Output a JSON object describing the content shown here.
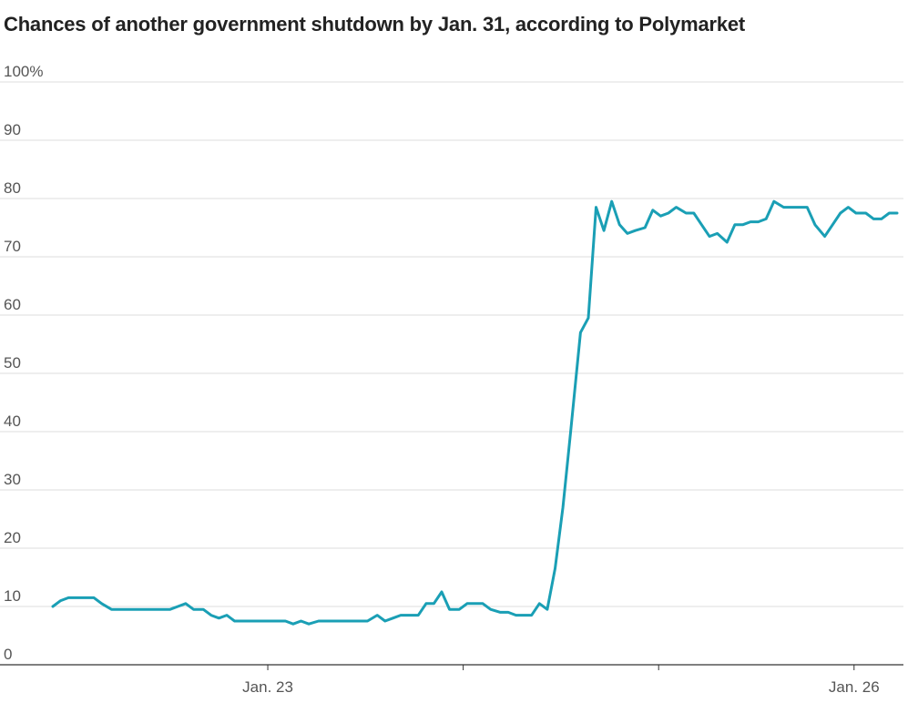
{
  "chart_data": {
    "type": "line",
    "title": "Chances of another government shutdown by Jan. 31, according to Polymarket",
    "xlabel": "",
    "ylabel": "",
    "ylim": [
      0,
      100
    ],
    "y_ticks": [
      {
        "value": 0,
        "label": "0"
      },
      {
        "value": 10,
        "label": "10"
      },
      {
        "value": 20,
        "label": "20"
      },
      {
        "value": 30,
        "label": "30"
      },
      {
        "value": 40,
        "label": "40"
      },
      {
        "value": 50,
        "label": "50"
      },
      {
        "value": 60,
        "label": "60"
      },
      {
        "value": 70,
        "label": "70"
      },
      {
        "value": 80,
        "label": "80"
      },
      {
        "value": 90,
        "label": "90"
      },
      {
        "value": 100,
        "label": "100%"
      }
    ],
    "x_ticks": [
      {
        "value": 23,
        "label": "Jan. 23"
      },
      {
        "value": 24,
        "label": ""
      },
      {
        "value": 25,
        "label": ""
      },
      {
        "value": 26,
        "label": "Jan. 26"
      }
    ],
    "xlim": [
      21.8,
      26.25
    ],
    "grid": true,
    "line_color": "#1a9fb5",
    "series": [
      {
        "x": [
          21.9,
          21.94,
          21.98,
          22.02,
          22.07,
          22.11,
          22.15,
          22.2,
          22.24,
          22.29,
          22.33,
          22.37,
          22.41,
          22.46,
          22.5,
          22.54,
          22.58,
          22.62,
          22.67,
          22.71,
          22.75,
          22.79,
          22.83,
          22.88,
          22.92,
          22.96,
          23.0,
          23.05,
          23.09,
          23.13,
          23.17,
          23.21,
          23.26,
          23.3,
          23.34,
          23.38,
          23.43,
          23.47,
          23.51,
          23.56,
          23.6,
          23.64,
          23.68,
          23.73,
          23.77,
          23.81,
          23.85,
          23.89,
          23.93,
          23.98,
          24.02,
          24.06,
          24.1,
          24.14,
          24.19,
          24.23,
          24.27,
          24.31,
          24.35,
          24.39,
          24.43,
          24.47,
          24.51,
          24.55,
          24.6,
          24.64,
          24.68,
          24.72,
          24.76,
          24.8,
          24.84,
          24.88,
          24.93,
          24.97,
          25.01,
          25.05,
          25.09,
          25.14,
          25.18,
          25.22,
          25.26,
          25.3,
          25.35,
          25.39,
          25.43,
          25.47,
          25.51,
          25.55,
          25.59,
          25.64,
          25.68,
          25.72,
          25.76,
          25.8,
          25.85,
          25.89,
          25.93,
          25.97,
          26.01,
          26.06,
          26.1,
          26.14,
          26.18,
          26.22
        ],
        "values": [
          10,
          11,
          11.5,
          11.5,
          11.5,
          11.5,
          10.5,
          9.5,
          9.5,
          9.5,
          9.5,
          9.5,
          9.5,
          9.5,
          9.5,
          10,
          10.5,
          9.5,
          9.5,
          8.5,
          8,
          8.5,
          7.5,
          7.5,
          7.5,
          7.5,
          7.5,
          7.5,
          7.5,
          7,
          7.5,
          7,
          7.5,
          7.5,
          7.5,
          7.5,
          7.5,
          7.5,
          7.5,
          8.5,
          7.5,
          8,
          8.5,
          8.5,
          8.5,
          10.5,
          10.5,
          12.5,
          9.5,
          9.5,
          10.5,
          10.5,
          10.5,
          9.5,
          9,
          9,
          8.5,
          8.5,
          8.5,
          10.5,
          9.5,
          16.5,
          27,
          40,
          57,
          59.5,
          78.5,
          74.5,
          79.5,
          75.5,
          74,
          74.5,
          75,
          78,
          77,
          77.5,
          78.5,
          77.5,
          77.5,
          75.5,
          73.5,
          74,
          72.5,
          75.5,
          75.5,
          76,
          76,
          76.5,
          79.5,
          78.5,
          78.5,
          78.5,
          78.5,
          75.5,
          73.5,
          75.5,
          77.5,
          78.5,
          77.5,
          77.5,
          76.5,
          76.5,
          77.5,
          77.5
        ]
      }
    ]
  }
}
